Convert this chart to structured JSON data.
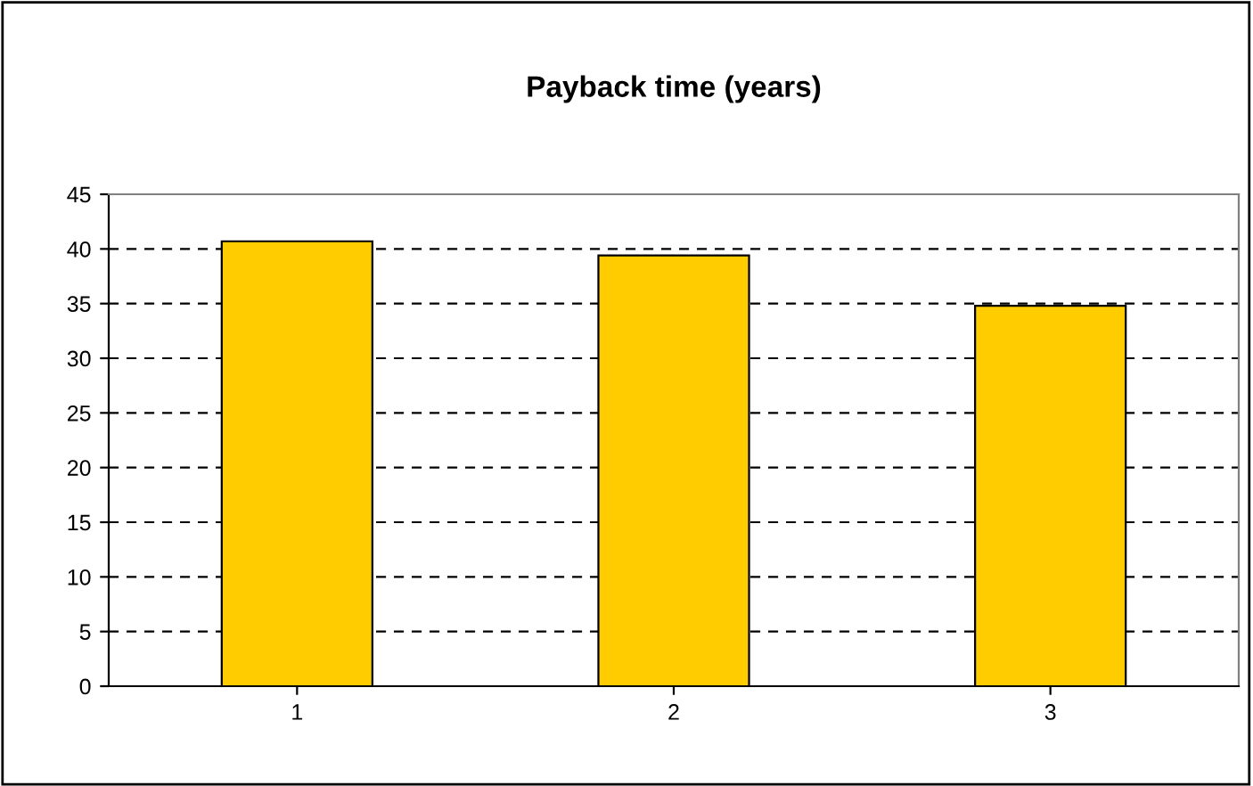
{
  "chart_data": {
    "type": "bar",
    "title": "Payback time (years)",
    "categories": [
      "1",
      "2",
      "3"
    ],
    "values": [
      40.7,
      39.4,
      34.8
    ],
    "color": "#ffcc00",
    "ylim": [
      0,
      45
    ],
    "yticks": [
      0,
      5,
      10,
      15,
      20,
      25,
      30,
      35,
      40,
      45
    ],
    "grid": "y",
    "legend": false
  }
}
